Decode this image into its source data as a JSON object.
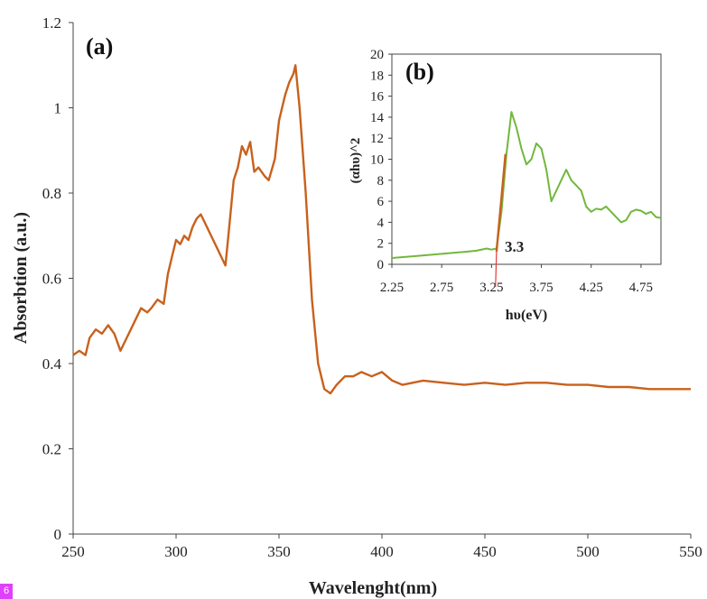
{
  "badge": "6",
  "chart_data": [
    {
      "type": "line",
      "panel_label": "(a)",
      "xlabel": "Wavelenght(nm)",
      "ylabel": "Absorbtion (a.u.)",
      "xlim": [
        250,
        550
      ],
      "ylim": [
        0,
        1.2
      ],
      "xticks": [
        "250",
        "300",
        "350",
        "400",
        "450",
        "500",
        "550"
      ],
      "yticks": [
        "0",
        "0.2",
        "0.4",
        "0.6",
        "0.8",
        "1",
        "1.2"
      ],
      "color": "#c8611d",
      "grid": false,
      "series": [
        {
          "x": [
            250,
            253,
            256,
            258,
            261,
            264,
            267,
            270,
            273,
            276,
            280,
            283,
            286,
            288,
            291,
            294,
            296,
            298,
            300,
            302,
            304,
            306,
            308,
            310,
            312,
            316,
            320,
            323,
            324,
            326,
            328,
            330,
            332,
            334,
            336,
            338,
            340,
            343,
            345,
            348,
            350,
            353,
            355,
            357,
            358,
            360,
            363,
            366,
            369,
            372,
            375,
            378,
            382,
            386,
            390,
            395,
            400,
            405,
            410,
            420,
            430,
            440,
            450,
            460,
            470,
            480,
            490,
            500,
            510,
            520,
            530,
            540,
            550
          ],
          "y": [
            0.42,
            0.43,
            0.42,
            0.46,
            0.48,
            0.47,
            0.49,
            0.47,
            0.43,
            0.46,
            0.5,
            0.53,
            0.52,
            0.53,
            0.55,
            0.54,
            0.61,
            0.65,
            0.69,
            0.68,
            0.7,
            0.69,
            0.72,
            0.74,
            0.75,
            0.71,
            0.67,
            0.64,
            0.63,
            0.73,
            0.83,
            0.86,
            0.91,
            0.89,
            0.92,
            0.85,
            0.86,
            0.84,
            0.83,
            0.88,
            0.97,
            1.03,
            1.06,
            1.08,
            1.1,
            1.0,
            0.8,
            0.55,
            0.4,
            0.34,
            0.33,
            0.35,
            0.37,
            0.37,
            0.38,
            0.37,
            0.38,
            0.36,
            0.35,
            0.36,
            0.355,
            0.35,
            0.355,
            0.35,
            0.355,
            0.355,
            0.35,
            0.35,
            0.345,
            0.345,
            0.34,
            0.34,
            0.34
          ]
        }
      ]
    },
    {
      "type": "line",
      "panel_label": "(b)",
      "xlabel": "hυ(eV)",
      "ylabel": "(αhυ)^2",
      "xlim": [
        2.25,
        4.95
      ],
      "ylim": [
        0,
        20
      ],
      "xticks": [
        "2.25",
        "2.75",
        "3.25",
        "3.75",
        "4.25",
        "4.75"
      ],
      "yticks": [
        "0",
        "2",
        "4",
        "6",
        "8",
        "10",
        "12",
        "14",
        "16",
        "18",
        "20"
      ],
      "grid": false,
      "annotation": "3.3",
      "series": [
        {
          "color": "#72b73e",
          "x": [
            2.25,
            2.5,
            2.75,
            3.0,
            3.1,
            3.2,
            3.25,
            3.3,
            3.35,
            3.4,
            3.45,
            3.5,
            3.55,
            3.6,
            3.65,
            3.7,
            3.75,
            3.8,
            3.85,
            3.9,
            3.95,
            4.0,
            4.05,
            4.1,
            4.15,
            4.2,
            4.25,
            4.3,
            4.35,
            4.4,
            4.45,
            4.5,
            4.55,
            4.6,
            4.65,
            4.7,
            4.75,
            4.8,
            4.85,
            4.9,
            4.95
          ],
          "y": [
            0.6,
            0.8,
            1.0,
            1.2,
            1.3,
            1.5,
            1.4,
            1.5,
            5.0,
            10.5,
            14.5,
            13.0,
            11.0,
            9.5,
            10.0,
            11.5,
            11.0,
            9.0,
            6.0,
            7.0,
            8.0,
            9.0,
            8.0,
            7.5,
            7.0,
            5.5,
            5.0,
            5.3,
            5.2,
            5.5,
            5.0,
            4.5,
            4.0,
            4.2,
            5.0,
            5.2,
            5.1,
            4.8,
            5.0,
            4.5,
            4.4
          ]
        },
        {
          "color": "#c8611d",
          "x": [
            3.3,
            3.39
          ],
          "y": [
            1.2,
            10.5
          ]
        },
        {
          "color": "#e23a3a",
          "x": [
            3.29,
            3.3
          ],
          "y": [
            -1.5,
            1.2
          ]
        }
      ]
    }
  ]
}
